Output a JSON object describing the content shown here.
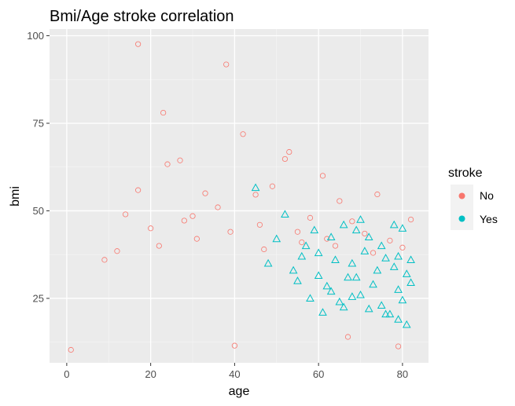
{
  "chart_data": {
    "type": "scatter",
    "title": "Bmi/Age stroke correlation",
    "xlabel": "age",
    "ylabel": "bmi",
    "xlim": [
      -4.1,
      86.2
    ],
    "ylim": [
      6.6,
      101.9
    ],
    "xticks": [
      0,
      20,
      40,
      60,
      80
    ],
    "xtick_labels": [
      "0",
      "20",
      "40",
      "60",
      "80"
    ],
    "yticks": [
      25,
      50,
      75,
      100
    ],
    "ytick_labels": [
      "25",
      "50",
      "75",
      "100"
    ],
    "grid": true,
    "legend": {
      "title": "stroke",
      "position": "right"
    },
    "series": [
      {
        "name": "No",
        "marker": "circle",
        "color": "#F8766D",
        "points": [
          [
            17,
            97.6
          ],
          [
            38,
            91.8
          ],
          [
            23,
            78
          ],
          [
            42,
            71.9
          ],
          [
            24,
            63.3
          ],
          [
            27,
            64.4
          ],
          [
            53,
            66.8
          ],
          [
            52,
            64.8
          ],
          [
            61,
            60
          ],
          [
            17,
            55.9
          ],
          [
            33,
            55
          ],
          [
            45,
            54.6
          ],
          [
            49,
            57
          ],
          [
            74,
            54.7
          ],
          [
            65,
            52.8
          ],
          [
            40,
            11.5
          ],
          [
            79,
            11.3
          ],
          [
            1,
            10.3
          ],
          [
            67,
            14
          ],
          [
            14,
            49
          ],
          [
            30,
            48.5
          ],
          [
            36,
            51
          ],
          [
            58,
            48
          ],
          [
            68,
            47
          ],
          [
            82,
            47.5
          ],
          [
            20,
            45
          ],
          [
            28,
            47.2
          ],
          [
            46,
            46
          ],
          [
            55,
            44
          ],
          [
            62,
            42
          ],
          [
            71,
            43.5
          ],
          [
            77,
            41.5
          ],
          [
            9,
            36
          ],
          [
            12,
            38.5
          ],
          [
            22,
            40
          ],
          [
            31,
            42
          ],
          [
            39,
            44
          ],
          [
            47,
            39
          ],
          [
            56,
            41
          ],
          [
            64,
            40
          ],
          [
            73,
            38
          ],
          [
            80,
            39.5
          ]
        ]
      },
      {
        "name": "Yes",
        "marker": "triangle",
        "color": "#00BFC4",
        "points": [
          [
            45,
            56.6
          ],
          [
            52,
            49
          ],
          [
            59,
            44.5
          ],
          [
            63,
            42.5
          ],
          [
            66,
            46
          ],
          [
            70,
            47.5
          ],
          [
            69,
            44.5
          ],
          [
            72,
            42.5
          ],
          [
            78,
            46
          ],
          [
            80,
            45
          ],
          [
            57,
            40
          ],
          [
            60,
            38
          ],
          [
            64,
            36
          ],
          [
            68,
            35
          ],
          [
            71,
            38.5
          ],
          [
            74,
            33
          ],
          [
            76,
            36.5
          ],
          [
            78,
            34
          ],
          [
            81,
            32
          ],
          [
            55,
            30
          ],
          [
            62,
            28.5
          ],
          [
            67,
            31
          ],
          [
            73,
            29
          ],
          [
            79,
            27.5
          ],
          [
            82,
            29.5
          ],
          [
            58,
            25
          ],
          [
            65,
            24
          ],
          [
            70,
            26
          ],
          [
            75,
            23
          ],
          [
            80,
            24.5
          ],
          [
            61,
            21
          ],
          [
            66,
            22.5
          ],
          [
            72,
            22
          ],
          [
            77,
            20.5
          ],
          [
            81,
            17.5
          ],
          [
            79,
            19
          ],
          [
            76,
            20.5
          ],
          [
            68,
            25.5
          ],
          [
            63,
            27
          ],
          [
            54,
            33
          ],
          [
            48,
            35
          ],
          [
            50,
            42
          ],
          [
            56,
            37
          ],
          [
            75,
            40
          ],
          [
            79,
            37
          ],
          [
            69,
            31
          ],
          [
            82,
            36
          ],
          [
            60,
            31.5
          ]
        ]
      }
    ]
  }
}
